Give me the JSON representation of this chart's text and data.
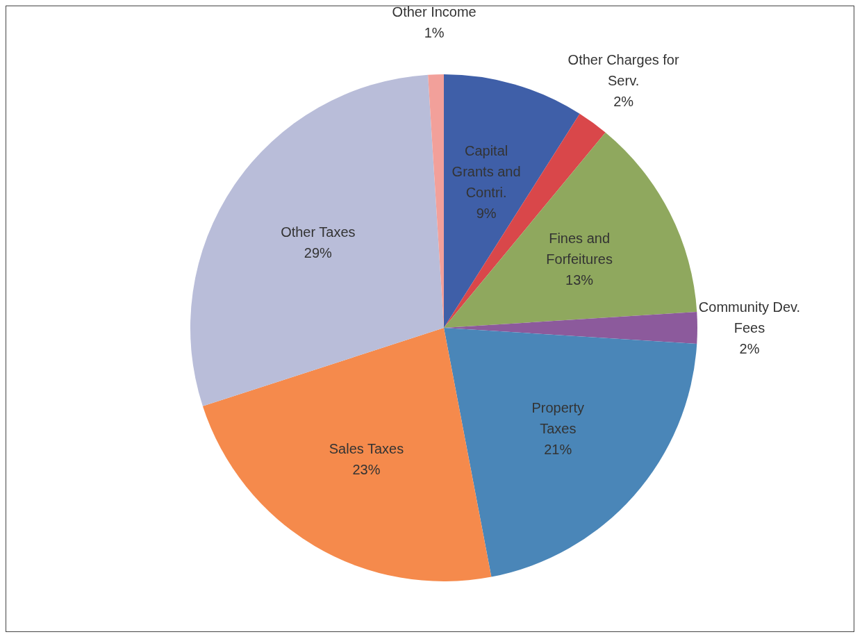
{
  "chart_data": {
    "type": "pie",
    "categories": [
      "Capital Grants and Contri.",
      "Other Charges for Serv.",
      "Fines and Forfeitures",
      "Community Dev. Fees",
      "Property Taxes",
      "Sales Taxes",
      "Other Taxes",
      "Other Income"
    ],
    "values": [
      9,
      2,
      13,
      2,
      21,
      23,
      29,
      1
    ],
    "value_labels": [
      "9%",
      "2%",
      "13%",
      "2%",
      "21%",
      "23%",
      "29%",
      "1%"
    ],
    "colors": [
      "#3f5fa8",
      "#d9474a",
      "#8fa85e",
      "#8c5a9c",
      "#4a86b8",
      "#f58a4c",
      "#b9bdd9",
      "#f2a09a"
    ]
  }
}
